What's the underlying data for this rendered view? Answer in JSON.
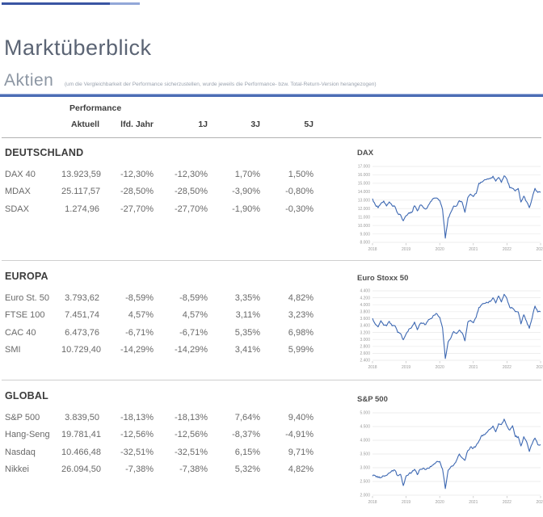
{
  "header": {
    "title": "Marktüberblick",
    "section_title": "Aktien",
    "section_note": "(um die Vergleichbarkeit der Performance sicherzustellen, wurde jeweils die Performance- bzw. Total-Return-Version herangezogen)"
  },
  "table": {
    "group_header": "Performance",
    "columns": [
      "Aktuell",
      "lfd. Jahr",
      "1J",
      "3J",
      "5J"
    ],
    "sections": [
      {
        "name": "DEUTSCHLAND",
        "rows": [
          {
            "label": "DAX 40",
            "values": [
              "13.923,59",
              "-12,30%",
              "-12,30%",
              "1,70%",
              "1,50%"
            ]
          },
          {
            "label": "MDAX",
            "values": [
              "25.117,57",
              "-28,50%",
              "-28,50%",
              "-3,90%",
              "-0,80%"
            ]
          },
          {
            "label": "SDAX",
            "values": [
              "1.274,96",
              "-27,70%",
              "-27,70%",
              "-1,90%",
              "-0,30%"
            ]
          }
        ]
      },
      {
        "name": "EUROPA",
        "rows": [
          {
            "label": "Euro St. 50",
            "values": [
              "3.793,62",
              "-8,59%",
              "-8,59%",
              "3,35%",
              "4,82%"
            ]
          },
          {
            "label": "FTSE 100",
            "values": [
              "7.451,74",
              "4,57%",
              "4,57%",
              "3,11%",
              "3,23%"
            ]
          },
          {
            "label": "CAC 40",
            "values": [
              "6.473,76",
              "-6,71%",
              "-6,71%",
              "5,35%",
              "6,98%"
            ]
          },
          {
            "label": "SMI",
            "values": [
              "10.729,40",
              "-14,29%",
              "-14,29%",
              "3,41%",
              "5,99%"
            ]
          }
        ]
      },
      {
        "name": "GLOBAL",
        "rows": [
          {
            "label": "S&P 500",
            "values": [
              "3.839,50",
              "-18,13%",
              "-18,13%",
              "7,64%",
              "9,40%"
            ]
          },
          {
            "label": "Hang-Seng",
            "values": [
              "19.781,41",
              "-12,56%",
              "-12,56%",
              "-8,37%",
              "-4,91%"
            ]
          },
          {
            "label": "Nasdaq",
            "values": [
              "10.466,48",
              "-32,51%",
              "-32,51%",
              "6,15%",
              "9,71%"
            ]
          },
          {
            "label": "Nikkei",
            "values": [
              "26.094,50",
              "-7,38%",
              "-7,38%",
              "5,32%",
              "4,82%"
            ]
          }
        ]
      }
    ]
  },
  "chart_data": [
    {
      "type": "line",
      "title": "DAX",
      "x_labels": [
        "2018",
        "2019",
        "2020",
        "2021",
        "2022",
        "2023"
      ],
      "ylim": [
        8000,
        17000
      ],
      "ytick_step": 1000,
      "grid": true,
      "legend": "none",
      "line_color": "#3d68b2",
      "values": [
        13180,
        12440,
        12100,
        12610,
        12900,
        12310,
        12800,
        12360,
        12250,
        11450,
        11260,
        10560,
        11170,
        11510,
        11530,
        12340,
        11730,
        12400,
        12190,
        11940,
        12430,
        12870,
        13240,
        13250,
        12980,
        11890,
        8500,
        10860,
        11590,
        12310,
        12310,
        12950,
        12760,
        11560,
        13290,
        13720,
        13430,
        13790,
        15010,
        15140,
        15420,
        15530,
        15540,
        15840,
        15260,
        15690,
        15100,
        15880,
        15470,
        14460,
        14410,
        14100,
        14390,
        12780,
        13480,
        12830,
        12110,
        13250,
        14400,
        13920,
        13924
      ]
    },
    {
      "type": "line",
      "title": "Euro Stoxx 50",
      "x_labels": [
        "2018",
        "2019",
        "2020",
        "2021",
        "2022",
        "2023"
      ],
      "ylim": [
        2400,
        4400
      ],
      "ytick_step": 200,
      "grid": true,
      "legend": "none",
      "line_color": "#3d68b2",
      "values": [
        3610,
        3440,
        3360,
        3540,
        3410,
        3390,
        3520,
        3390,
        3400,
        3200,
        3170,
        2990,
        3160,
        3300,
        3350,
        3500,
        3280,
        3450,
        3470,
        3430,
        3570,
        3600,
        3700,
        3740,
        3640,
        3330,
        2450,
        2930,
        3050,
        3230,
        3170,
        3270,
        3190,
        2960,
        3490,
        3550,
        3480,
        3640,
        3920,
        4000,
        4040,
        4060,
        4090,
        4200,
        4050,
        4250,
        4080,
        4300,
        4170,
        3920,
        3900,
        3800,
        3790,
        3450,
        3710,
        3520,
        3320,
        3620,
        3960,
        3790,
        3794
      ]
    },
    {
      "type": "line",
      "title": "S&P 500",
      "x_labels": [
        "2018",
        "2019",
        "2020",
        "2021",
        "2022",
        "2023"
      ],
      "ylim": [
        2000,
        5000
      ],
      "ytick_step": 500,
      "grid": true,
      "legend": "none",
      "line_color": "#3d68b2",
      "values": [
        2700,
        2710,
        2640,
        2650,
        2700,
        2720,
        2810,
        2900,
        2910,
        2710,
        2760,
        2350,
        2700,
        2780,
        2830,
        2940,
        2750,
        2940,
        2980,
        2930,
        2980,
        3040,
        3140,
        3230,
        3230,
        2950,
        2240,
        2910,
        3040,
        3100,
        3270,
        3500,
        3360,
        3270,
        3620,
        3760,
        3710,
        3810,
        3970,
        4180,
        4200,
        4300,
        4400,
        4520,
        4310,
        4600,
        4570,
        4770,
        4520,
        4370,
        4530,
        4130,
        4130,
        3790,
        4130,
        3950,
        3590,
        3870,
        4080,
        3840,
        3840
      ]
    }
  ],
  "colors": {
    "accent_dark_blue": "#3a55a3",
    "accent_light_blue": "#92a7d8",
    "rule_blue": "#4c6db5",
    "chart_line": "#3d68b2",
    "grid_gray": "#e9e9e9",
    "text_gray": "#696969"
  }
}
